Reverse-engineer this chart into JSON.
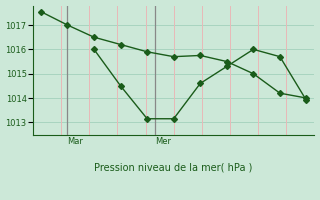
{
  "bg_color": "#cce8d8",
  "grid_color_v": "#e8b8b8",
  "grid_color_h": "#a8d4c0",
  "line_color": "#1a5c1a",
  "vline_color": "#c08080",
  "xlabel": "Pression niveau de la mer( hPa )",
  "yticks": [
    1013,
    1014,
    1015,
    1016,
    1017
  ],
  "ylim": [
    1012.5,
    1017.8
  ],
  "xlim": [
    -0.3,
    10.3
  ],
  "vlines_x": [
    1.0,
    4.3
  ],
  "vline_labels": [
    "Mar",
    "Mer"
  ],
  "line1_x": [
    0,
    1,
    2,
    3,
    4,
    5,
    6,
    7,
    8,
    9,
    10
  ],
  "line1_y": [
    1017.55,
    1017.0,
    1016.5,
    1016.2,
    1015.9,
    1015.7,
    1015.75,
    1015.5,
    1015.0,
    1014.2,
    1014.0
  ],
  "line2_x": [
    2,
    3,
    4,
    5,
    6,
    7,
    8,
    9,
    10
  ],
  "line2_y": [
    1016.0,
    1014.5,
    1013.15,
    1013.15,
    1014.6,
    1015.3,
    1016.0,
    1015.7,
    1013.9
  ],
  "marker": "D",
  "markersize": 3,
  "linewidth": 1.0,
  "linestyle": "-"
}
